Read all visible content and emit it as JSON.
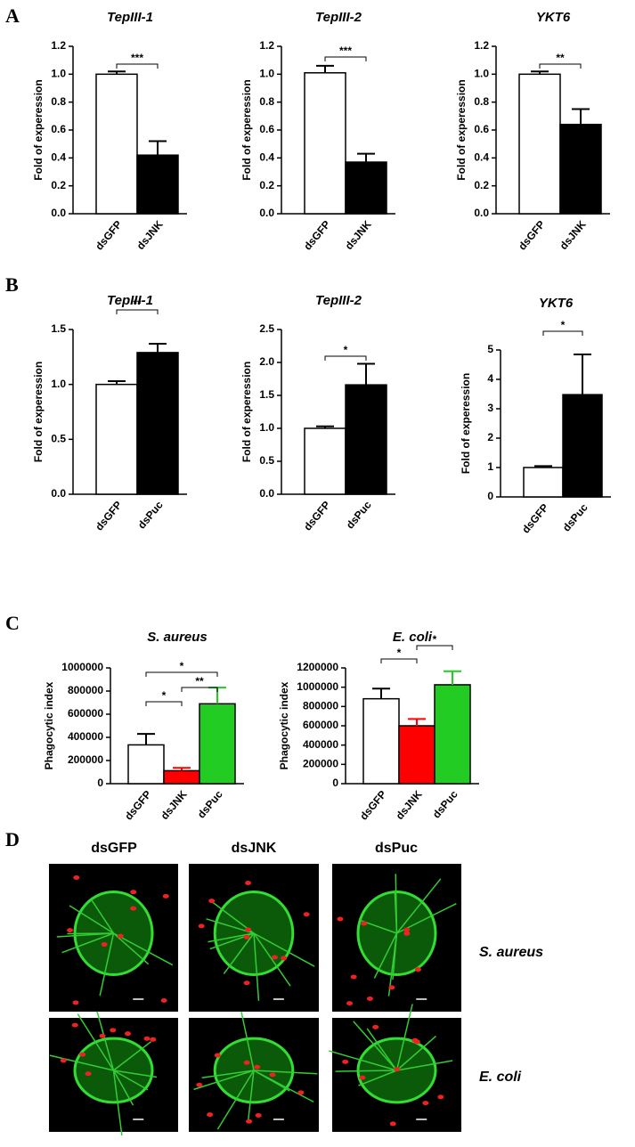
{
  "panels": [
    "A",
    "B",
    "C",
    "D"
  ],
  "chart_data": [
    {
      "type": "bar",
      "title": "TepIII-1",
      "ylabel": "Fold of experession",
      "categories": [
        "dsGFP",
        "dsJNK"
      ],
      "values": [
        1.0,
        0.42
      ],
      "errors": [
        0.02,
        0.1
      ],
      "colors": [
        "#ffffff",
        "#000000"
      ],
      "ylim": [
        0,
        1.2
      ],
      "yticks": [
        {
          "value": 0,
          "label": "0.0"
        },
        0.2,
        0.4,
        0.6,
        0.8,
        {
          "value": 1,
          "label": "1.0"
        },
        1.2
      ],
      "annotations": [
        "***"
      ]
    },
    {
      "type": "bar",
      "title": "TepIII-2",
      "ylabel": "Fold of experession",
      "categories": [
        "dsGFP",
        "dsJNK"
      ],
      "values": [
        1.01,
        0.37
      ],
      "errors": [
        0.05,
        0.06
      ],
      "colors": [
        "#ffffff",
        "#000000"
      ],
      "ylim": [
        0,
        1.2
      ],
      "yticks": [
        {
          "value": 0,
          "label": "0.0"
        },
        0.2,
        0.4,
        0.6,
        0.8,
        {
          "value": 1,
          "label": "1.0"
        },
        1.2
      ],
      "annotations": [
        "***"
      ]
    },
    {
      "type": "bar",
      "title": "YKT6",
      "ylabel": "Fold of experession",
      "categories": [
        "dsGFP",
        "dsJNK"
      ],
      "values": [
        1.0,
        0.64
      ],
      "errors": [
        0.02,
        0.11
      ],
      "colors": [
        "#ffffff",
        "#000000"
      ],
      "ylim": [
        0,
        1.2
      ],
      "yticks": [
        {
          "value": 0,
          "label": "0.0"
        },
        0.2,
        0.4,
        0.6,
        0.8,
        {
          "value": 1,
          "label": "1.0"
        },
        1.2
      ],
      "annotations": [
        "**"
      ]
    },
    {
      "type": "bar",
      "title": "TepIII-1",
      "ylabel": "Fold of experession",
      "categories": [
        "dsGFP",
        "dsPuc"
      ],
      "values": [
        1.0,
        1.29
      ],
      "errors": [
        0.03,
        0.08
      ],
      "colors": [
        "#ffffff",
        "#000000"
      ],
      "ylim": [
        0,
        1.5
      ],
      "yticks": [
        {
          "value": 0,
          "label": "0.0"
        },
        0.5,
        {
          "value": 1,
          "label": "1.0"
        },
        1.5
      ],
      "annotations": [
        "**"
      ]
    },
    {
      "type": "bar",
      "title": "TepIII-2",
      "ylabel": "Fold of experession",
      "categories": [
        "dsGFP",
        "dsPuc"
      ],
      "values": [
        1.0,
        1.66
      ],
      "errors": [
        0.03,
        0.32
      ],
      "colors": [
        "#ffffff",
        "#000000"
      ],
      "ylim": [
        0,
        2.5
      ],
      "yticks": [
        {
          "value": 0,
          "label": "0.0"
        },
        0.5,
        {
          "value": 1,
          "label": "1.0"
        },
        1.5,
        {
          "value": 2,
          "label": "2.0"
        },
        2.5
      ],
      "annotations": [
        "*"
      ]
    },
    {
      "type": "bar",
      "title": "YKT6",
      "ylabel": "Fold of experession",
      "categories": [
        "dsGFP",
        "dsPuc"
      ],
      "values": [
        1.0,
        3.48
      ],
      "errors": [
        0.05,
        1.37
      ],
      "colors": [
        "#ffffff",
        "#000000"
      ],
      "ylim": [
        0,
        5
      ],
      "yticks": [
        0,
        1,
        2,
        3,
        4,
        5
      ],
      "annotations": [
        "*"
      ]
    },
    {
      "type": "bar",
      "title": "S. aureus",
      "ylabel": "Phagocytic index",
      "categories": [
        "dsGFP",
        "dsJNK",
        "dsPuc"
      ],
      "values": [
        335000,
        112000,
        690000
      ],
      "errors": [
        95000,
        25000,
        140000
      ],
      "colors": [
        "#ffffff",
        "#ff0000",
        "#22cc22"
      ],
      "ylim": [
        0,
        1000000
      ],
      "yticks": [
        0,
        200000,
        400000,
        600000,
        800000,
        1000000
      ],
      "annotations": [
        "*",
        "*",
        "**"
      ]
    },
    {
      "type": "bar",
      "title": "E. coli",
      "ylabel": "Phagocytic index",
      "categories": [
        "dsGFP",
        "dsJNK",
        "dsPuc"
      ],
      "values": [
        880000,
        600000,
        1025000
      ],
      "errors": [
        105000,
        70000,
        140000
      ],
      "colors": [
        "#ffffff",
        "#ff0000",
        "#22cc22"
      ],
      "ylim": [
        0,
        1200000
      ],
      "yticks": [
        0,
        200000,
        400000,
        600000,
        800000,
        1000000,
        1200000
      ],
      "annotations": [
        "*",
        "*"
      ]
    }
  ],
  "images": {
    "columns": [
      "dsGFP",
      "dsJNK",
      "dsPuc"
    ],
    "rows": [
      "S. aureus",
      "E. coli"
    ]
  }
}
